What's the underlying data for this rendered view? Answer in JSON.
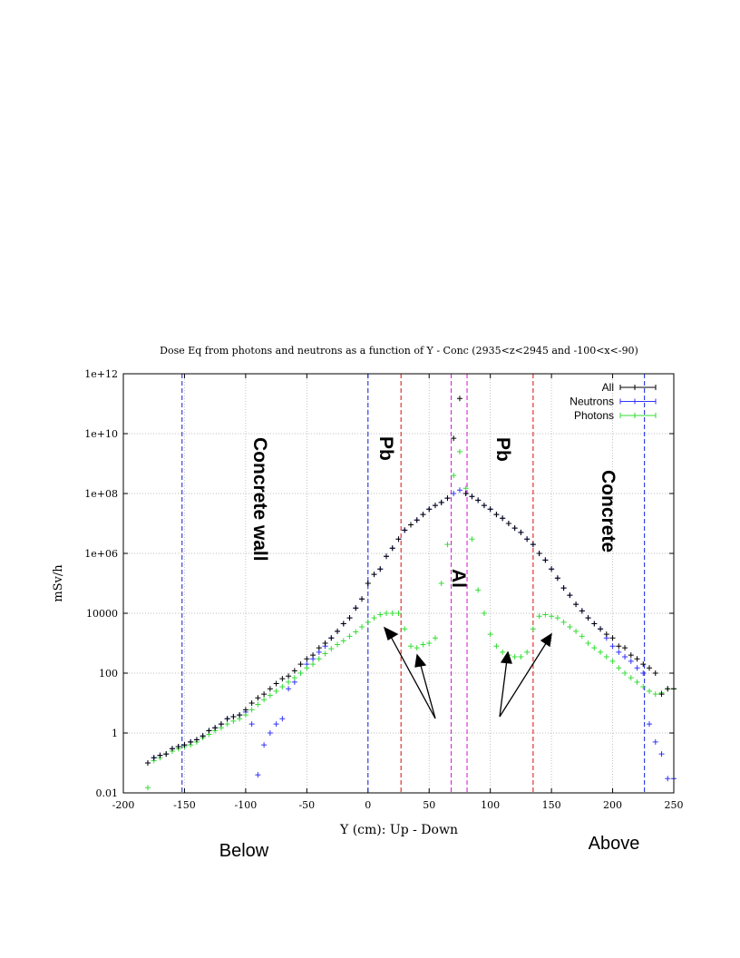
{
  "chart_data": {
    "type": "scatter",
    "title": "Dose Eq from photons and neutrons  as a function of Y  - Conc (2935<z<2945 and  -100<x<-90)",
    "xlabel": "Y (cm): Up - Down",
    "ylabel": "mSv/h",
    "xlim": [
      -200,
      250
    ],
    "ylim": [
      0.01,
      1000000000000.0
    ],
    "yscale": "log",
    "grid": true,
    "legend_position": "top-right",
    "x_ticks": [
      "-200",
      "-150",
      "-100",
      "-50",
      "0",
      "50",
      "100",
      "150",
      "200",
      "250"
    ],
    "y_ticks": [
      "0.01",
      "1",
      "100",
      "10000",
      "1e+06",
      "1e+08",
      "1e+10",
      "1e+12"
    ],
    "series": [
      {
        "name": "All",
        "color": "#000000",
        "points": [
          [
            -180,
            0.1
          ],
          [
            -175,
            0.15
          ],
          [
            -170,
            0.18
          ],
          [
            -165,
            0.2
          ],
          [
            -160,
            0.3
          ],
          [
            -155,
            0.35
          ],
          [
            -150,
            0.4
          ],
          [
            -145,
            0.5
          ],
          [
            -140,
            0.6
          ],
          [
            -135,
            0.8
          ],
          [
            -130,
            1.2
          ],
          [
            -125,
            1.5
          ],
          [
            -120,
            2
          ],
          [
            -115,
            3
          ],
          [
            -110,
            3.5
          ],
          [
            -105,
            4
          ],
          [
            -100,
            6
          ],
          [
            -95,
            10
          ],
          [
            -90,
            15
          ],
          [
            -85,
            20
          ],
          [
            -80,
            30
          ],
          [
            -75,
            45
          ],
          [
            -70,
            65
          ],
          [
            -65,
            80
          ],
          [
            -60,
            120
          ],
          [
            -55,
            200
          ],
          [
            -50,
            300
          ],
          [
            -45,
            400
          ],
          [
            -40,
            700
          ],
          [
            -35,
            1000
          ],
          [
            -30,
            1500
          ],
          [
            -25,
            2500
          ],
          [
            -20,
            4500
          ],
          [
            -15,
            7000
          ],
          [
            -10,
            15000
          ],
          [
            -5,
            30000
          ],
          [
            0,
            100000
          ],
          [
            5,
            200000
          ],
          [
            10,
            300000
          ],
          [
            15,
            800000
          ],
          [
            20,
            1500000.0
          ],
          [
            25,
            3000000.0
          ],
          [
            30,
            6000000.0
          ],
          [
            35,
            9000000.0
          ],
          [
            40,
            13000000.0
          ],
          [
            45,
            20000000.0
          ],
          [
            50,
            30000000.0
          ],
          [
            55,
            40000000.0
          ],
          [
            60,
            50000000.0
          ],
          [
            65,
            70000000.0
          ],
          [
            70,
            7000000000.0
          ],
          [
            75,
            150000000000.0
          ],
          [
            80,
            100000000.0
          ],
          [
            85,
            80000000.0
          ],
          [
            90,
            60000000.0
          ],
          [
            95,
            40000000.0
          ],
          [
            100,
            30000000.0
          ],
          [
            105,
            20000000.0
          ],
          [
            110,
            15000000.0
          ],
          [
            115,
            10000000.0
          ],
          [
            120,
            7000000.0
          ],
          [
            125,
            5000000.0
          ],
          [
            130,
            3000000.0
          ],
          [
            135,
            2000000.0
          ],
          [
            140,
            1000000.0
          ],
          [
            145,
            600000
          ],
          [
            150,
            300000
          ],
          [
            155,
            150000
          ],
          [
            160,
            70000
          ],
          [
            165,
            40000
          ],
          [
            170,
            20000
          ],
          [
            175,
            12000
          ],
          [
            180,
            7000
          ],
          [
            185,
            4500
          ],
          [
            190,
            3000
          ],
          [
            195,
            2000
          ],
          [
            200,
            1500
          ],
          [
            205,
            800
          ],
          [
            210,
            700
          ],
          [
            215,
            400
          ],
          [
            220,
            300
          ],
          [
            225,
            200
          ],
          [
            230,
            150
          ],
          [
            235,
            100
          ],
          [
            240,
            20
          ],
          [
            245,
            30
          ],
          [
            250,
            30
          ]
        ]
      },
      {
        "name": "Neutrons",
        "color": "#3333ff",
        "points": [
          [
            -180,
            0.1
          ],
          [
            -175,
            0.15
          ],
          [
            -170,
            0.18
          ],
          [
            -165,
            0.2
          ],
          [
            -160,
            0.3
          ],
          [
            -155,
            0.35
          ],
          [
            -150,
            0.4
          ],
          [
            -145,
            0.5
          ],
          [
            -140,
            0.6
          ],
          [
            -135,
            0.8
          ],
          [
            -130,
            1.2
          ],
          [
            -125,
            1.5
          ],
          [
            -120,
            2
          ],
          [
            -115,
            3
          ],
          [
            -110,
            3.5
          ],
          [
            -105,
            4
          ],
          [
            -100,
            5
          ],
          [
            -95,
            2
          ],
          [
            -90,
            0.04
          ],
          [
            -85,
            0.4
          ],
          [
            -80,
            1
          ],
          [
            -75,
            2
          ],
          [
            -70,
            3
          ],
          [
            -65,
            30
          ],
          [
            -60,
            50
          ],
          [
            -55,
            100
          ],
          [
            -50,
            200
          ],
          [
            -45,
            300
          ],
          [
            -40,
            500
          ],
          [
            -35,
            800
          ],
          [
            -30,
            1500
          ],
          [
            -25,
            2500
          ],
          [
            -20,
            4500
          ],
          [
            -15,
            7000
          ],
          [
            -10,
            15000
          ],
          [
            -5,
            30000
          ],
          [
            0,
            100000
          ],
          [
            5,
            200000
          ],
          [
            10,
            300000
          ],
          [
            15,
            800000
          ],
          [
            20,
            1500000.0
          ],
          [
            25,
            3000000.0
          ],
          [
            30,
            6000000.0
          ],
          [
            35,
            9000000.0
          ],
          [
            40,
            13000000.0
          ],
          [
            45,
            20000000.0
          ],
          [
            50,
            30000000.0
          ],
          [
            55,
            40000000.0
          ],
          [
            60,
            50000000.0
          ],
          [
            65,
            70000000.0
          ],
          [
            70,
            100000000.0
          ],
          [
            75,
            130000000.0
          ],
          [
            80,
            100000000.0
          ],
          [
            85,
            80000000.0
          ],
          [
            90,
            60000000.0
          ],
          [
            95,
            40000000.0
          ],
          [
            100,
            30000000.0
          ],
          [
            105,
            20000000.0
          ],
          [
            110,
            15000000.0
          ],
          [
            115,
            10000000.0
          ],
          [
            120,
            7000000.0
          ],
          [
            125,
            5000000.0
          ],
          [
            130,
            3000000.0
          ],
          [
            135,
            2000000.0
          ],
          [
            140,
            1000000.0
          ],
          [
            145,
            600000
          ],
          [
            150,
            300000
          ],
          [
            155,
            150000
          ],
          [
            160,
            70000
          ],
          [
            165,
            40000
          ],
          [
            170,
            20000
          ],
          [
            175,
            12000
          ],
          [
            180,
            7000
          ],
          [
            185,
            4500
          ],
          [
            190,
            3000
          ],
          [
            195,
            1500
          ],
          [
            200,
            800
          ],
          [
            205,
            500
          ],
          [
            210,
            350
          ],
          [
            215,
            250
          ],
          [
            220,
            150
          ],
          [
            225,
            100
          ],
          [
            230,
            2
          ],
          [
            235,
            0.5
          ],
          [
            240,
            0.2
          ],
          [
            245,
            0.03
          ],
          [
            250,
            0.03
          ]
        ]
      },
      {
        "name": "Photons",
        "color": "#33dd33",
        "points": [
          [
            -180,
            0.015
          ],
          [
            -175,
            0.12
          ],
          [
            -170,
            0.15
          ],
          [
            -165,
            0.2
          ],
          [
            -160,
            0.25
          ],
          [
            -155,
            0.3
          ],
          [
            -150,
            0.35
          ],
          [
            -145,
            0.4
          ],
          [
            -140,
            0.5
          ],
          [
            -135,
            0.7
          ],
          [
            -130,
            0.9
          ],
          [
            -125,
            1.2
          ],
          [
            -120,
            1.5
          ],
          [
            -115,
            2
          ],
          [
            -110,
            2.5
          ],
          [
            -105,
            3
          ],
          [
            -100,
            4
          ],
          [
            -95,
            6
          ],
          [
            -90,
            9
          ],
          [
            -85,
            13
          ],
          [
            -80,
            18
          ],
          [
            -75,
            25
          ],
          [
            -70,
            35
          ],
          [
            -65,
            50
          ],
          [
            -60,
            70
          ],
          [
            -55,
            100
          ],
          [
            -50,
            150
          ],
          [
            -45,
            200
          ],
          [
            -40,
            300
          ],
          [
            -35,
            450
          ],
          [
            -30,
            650
          ],
          [
            -25,
            900
          ],
          [
            -20,
            1200
          ],
          [
            -15,
            1700
          ],
          [
            -10,
            2400
          ],
          [
            -5,
            3500
          ],
          [
            0,
            5000
          ],
          [
            5,
            7000
          ],
          [
            10,
            9000
          ],
          [
            15,
            10000
          ],
          [
            20,
            10000
          ],
          [
            25,
            10000
          ],
          [
            30,
            3000
          ],
          [
            35,
            800
          ],
          [
            40,
            700
          ],
          [
            45,
            900
          ],
          [
            50,
            1000
          ],
          [
            55,
            1500
          ],
          [
            60,
            100000
          ],
          [
            65,
            2000000.0
          ],
          [
            70,
            400000000.0
          ],
          [
            75,
            2500000000.0
          ],
          [
            80,
            150000000.0
          ],
          [
            85,
            3000000.0
          ],
          [
            90,
            60000
          ],
          [
            95,
            10000
          ],
          [
            100,
            2000
          ],
          [
            105,
            800
          ],
          [
            110,
            500
          ],
          [
            115,
            400
          ],
          [
            120,
            350
          ],
          [
            125,
            350
          ],
          [
            130,
            500
          ],
          [
            135,
            3000
          ],
          [
            140,
            8000
          ],
          [
            145,
            9000
          ],
          [
            150,
            8000
          ],
          [
            155,
            7000
          ],
          [
            160,
            5000
          ],
          [
            165,
            3500
          ],
          [
            170,
            2500
          ],
          [
            175,
            1700
          ],
          [
            180,
            1000
          ],
          [
            185,
            700
          ],
          [
            190,
            500
          ],
          [
            195,
            350
          ],
          [
            200,
            250
          ],
          [
            205,
            150
          ],
          [
            210,
            100
          ],
          [
            215,
            70
          ],
          [
            220,
            50
          ],
          [
            225,
            35
          ],
          [
            230,
            25
          ],
          [
            235,
            20
          ],
          [
            240,
            22
          ],
          [
            245,
            30
          ],
          [
            250,
            30
          ]
        ]
      }
    ],
    "boundaries": [
      {
        "x": -152,
        "color": "#2233dd"
      },
      {
        "x": 0,
        "color": "#2233dd"
      },
      {
        "x": 27,
        "color": "#dd2222"
      },
      {
        "x": 68,
        "color": "#dd22dd"
      },
      {
        "x": 81,
        "color": "#dd22dd"
      },
      {
        "x": 135,
        "color": "#dd2222"
      },
      {
        "x": 226,
        "color": "#2233dd"
      }
    ]
  },
  "annotations": {
    "concrete_wall": "Concrete wall",
    "concrete": "Concrete",
    "pb_left": "Pb",
    "pb_right": "Pb",
    "al": "Al",
    "below": "Below",
    "above": "Above"
  }
}
